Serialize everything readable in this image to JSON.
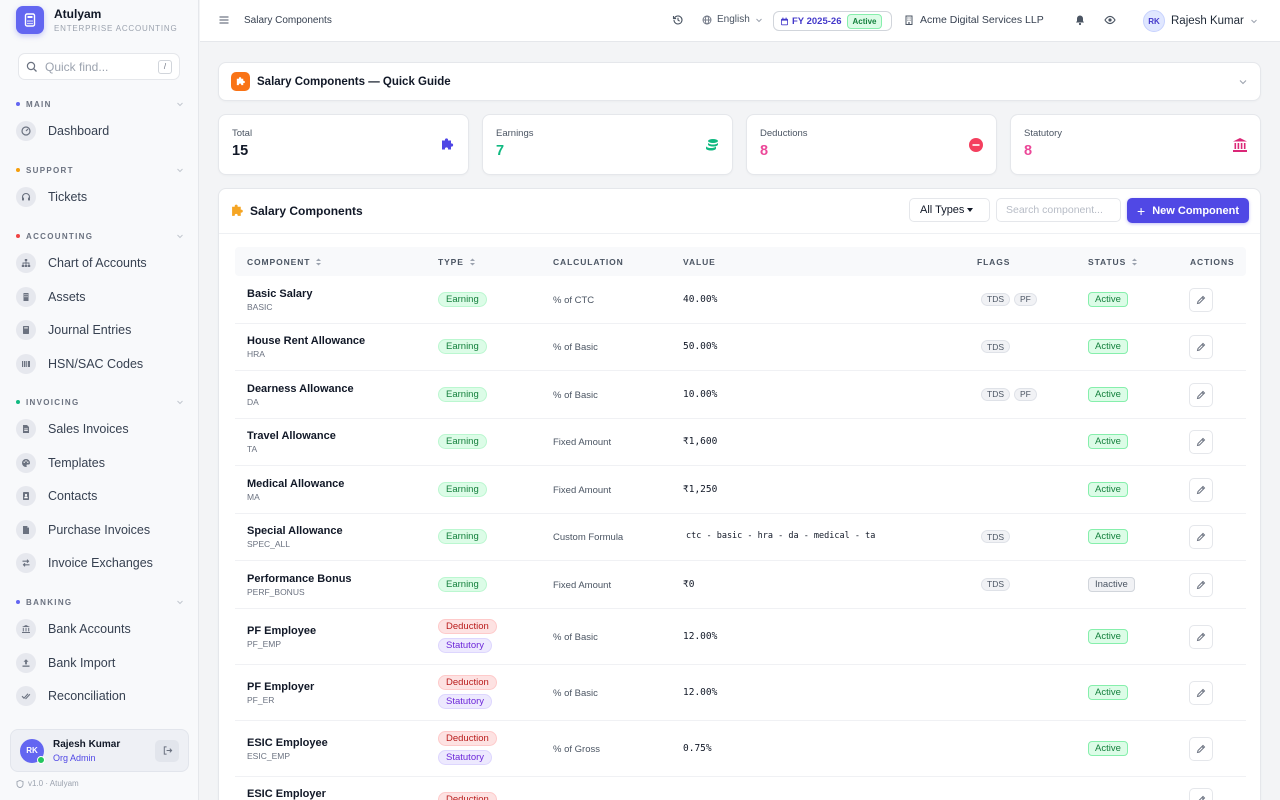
{
  "brand": {
    "name": "Atulyam",
    "subtitle": "ENTERPRISE ACCOUNTING"
  },
  "quick_find": {
    "placeholder": "Quick find...",
    "shortcut": "/"
  },
  "sidebar": {
    "sections": [
      {
        "label": "MAIN",
        "color": "#6366f1",
        "items": [
          {
            "label": "Dashboard",
            "icon": "dashboard-icon"
          }
        ]
      },
      {
        "label": "SUPPORT",
        "color": "#f59e0b",
        "items": [
          {
            "label": "Tickets",
            "icon": "headset-icon"
          }
        ]
      },
      {
        "label": "ACCOUNTING",
        "color": "#ef4444",
        "items": [
          {
            "label": "Chart of Accounts",
            "icon": "sitemap-icon"
          },
          {
            "label": "Assets",
            "icon": "building-icon"
          },
          {
            "label": "Journal Entries",
            "icon": "book-icon"
          },
          {
            "label": "HSN/SAC Codes",
            "icon": "barcode-icon"
          }
        ]
      },
      {
        "label": "INVOICING",
        "color": "#10b981",
        "items": [
          {
            "label": "Sales Invoices",
            "icon": "file-invoice-icon"
          },
          {
            "label": "Templates",
            "icon": "palette-icon"
          },
          {
            "label": "Contacts",
            "icon": "address-book-icon"
          },
          {
            "label": "Purchase Invoices",
            "icon": "file-icon"
          },
          {
            "label": "Invoice Exchanges",
            "icon": "exchange-icon"
          }
        ]
      },
      {
        "label": "BANKING",
        "color": "#6366f1",
        "items": [
          {
            "label": "Bank Accounts",
            "icon": "bank-icon"
          },
          {
            "label": "Bank Import",
            "icon": "upload-icon"
          },
          {
            "label": "Reconciliation",
            "icon": "check-double-icon"
          }
        ]
      }
    ]
  },
  "user_card": {
    "initials": "RK",
    "name": "Rajesh Kumar",
    "role": "Org Admin"
  },
  "version": "v1.0 · Atulyam",
  "topbar": {
    "title": "Salary Components",
    "language": "English",
    "fy": "FY 2025-26",
    "fy_status": "Active",
    "company": "Acme Digital Services LLP",
    "user_initials": "RK",
    "user_name": "Rajesh Kumar"
  },
  "guide": {
    "title": "Salary Components — Quick Guide"
  },
  "stats": [
    {
      "label": "Total",
      "value": "15",
      "color": "#111827",
      "icon": "puzzle-icon",
      "icon_color": "#4f46e5"
    },
    {
      "label": "Earnings",
      "value": "7",
      "color": "#10b981",
      "icon": "coins-icon",
      "icon_color": "#10b981"
    },
    {
      "label": "Deductions",
      "value": "8",
      "color": "#ec4899",
      "icon": "minus-circle-icon",
      "icon_color": "#f43f5e"
    },
    {
      "label": "Statutory",
      "value": "8",
      "color": "#ec4899",
      "icon": "landmark-icon",
      "icon_color": "#db2777"
    }
  ],
  "table_card": {
    "title": "Salary Components",
    "type_filter": "All Types",
    "search_placeholder": "Search component...",
    "new_button": "New Component",
    "columns": [
      "COMPONENT",
      "TYPE",
      "CALCULATION",
      "VALUE",
      "FLAGS",
      "STATUS",
      "ACTIONS"
    ]
  },
  "rows": [
    {
      "name": "Basic Salary",
      "code": "BASIC",
      "types": [
        "Earning"
      ],
      "calc": "% of CTC",
      "value": "40.00%",
      "flags": [
        "TDS",
        "PF"
      ],
      "status": "Active"
    },
    {
      "name": "House Rent Allowance",
      "code": "HRA",
      "types": [
        "Earning"
      ],
      "calc": "% of Basic",
      "value": "50.00%",
      "flags": [
        "TDS"
      ],
      "status": "Active"
    },
    {
      "name": "Dearness Allowance",
      "code": "DA",
      "types": [
        "Earning"
      ],
      "calc": "% of Basic",
      "value": "10.00%",
      "flags": [
        "TDS",
        "PF"
      ],
      "status": "Active"
    },
    {
      "name": "Travel Allowance",
      "code": "TA",
      "types": [
        "Earning"
      ],
      "calc": "Fixed Amount",
      "value": "₹1,600",
      "flags": [],
      "status": "Active"
    },
    {
      "name": "Medical Allowance",
      "code": "MA",
      "types": [
        "Earning"
      ],
      "calc": "Fixed Amount",
      "value": "₹1,250",
      "flags": [],
      "status": "Active"
    },
    {
      "name": "Special Allowance",
      "code": "SPEC_ALL",
      "types": [
        "Earning"
      ],
      "calc": "Custom Formula",
      "value": "ctc - basic - hra - da - medical - ta",
      "flags": [
        "TDS"
      ],
      "status": "Active"
    },
    {
      "name": "Performance Bonus",
      "code": "PERF_BONUS",
      "types": [
        "Earning"
      ],
      "calc": "Fixed Amount",
      "value": "₹0",
      "flags": [
        "TDS"
      ],
      "status": "Inactive"
    },
    {
      "name": "PF Employee",
      "code": "PF_EMP",
      "types": [
        "Deduction",
        "Statutory"
      ],
      "calc": "% of Basic",
      "value": "12.00%",
      "flags": [],
      "status": "Active"
    },
    {
      "name": "PF Employer",
      "code": "PF_ER",
      "types": [
        "Deduction",
        "Statutory"
      ],
      "calc": "% of Basic",
      "value": "12.00%",
      "flags": [],
      "status": "Active"
    },
    {
      "name": "ESIC Employee",
      "code": "ESIC_EMP",
      "types": [
        "Deduction",
        "Statutory"
      ],
      "calc": "% of Gross",
      "value": "0.75%",
      "flags": [],
      "status": "Active"
    },
    {
      "name": "ESIC Employer",
      "code": "",
      "types": [
        "Deduction"
      ],
      "calc": "",
      "value": "",
      "flags": [],
      "status": ""
    }
  ]
}
